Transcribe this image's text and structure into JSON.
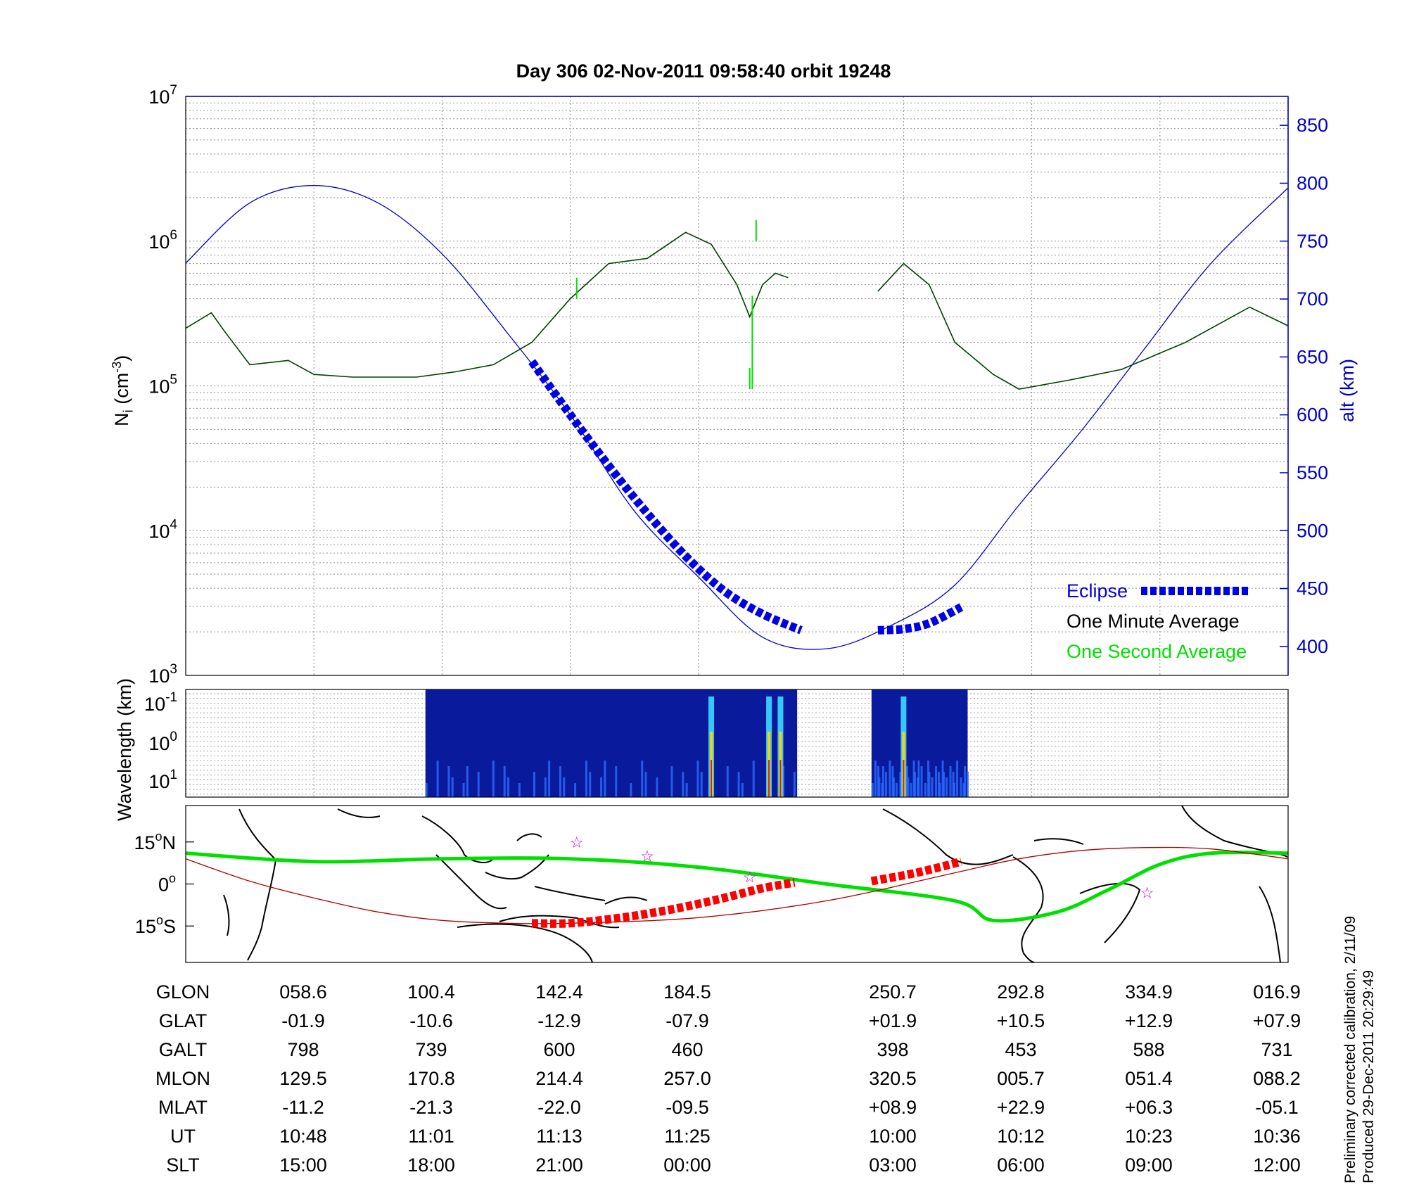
{
  "title": "Day 306  02-Nov-2011 09:58:40   orbit 19248",
  "colors": {
    "altitude": "#0000c8",
    "eclipse": "#0000e6",
    "one_minute": "#004000",
    "one_second": "#00e000",
    "ground_track": "#00e000",
    "eclipse_track": "#ff0000",
    "magnetic_equator": "#b00000",
    "stars": "#cc00cc"
  },
  "chart_data": [
    {
      "type": "line",
      "panel": "density",
      "ylabel_left": "N",
      "ylabel_left_sub": "i",
      "ylabel_left_unit": "(cm",
      "ylabel_left_exp": "-3",
      "ylabel_left_close": ")",
      "ylabel_right": "alt (km)",
      "yscale": "log",
      "ylim": [
        1000,
        10000000
      ],
      "y_ticks": [
        {
          "base": "10",
          "exp": "3"
        },
        {
          "base": "10",
          "exp": "4"
        },
        {
          "base": "10",
          "exp": "5"
        },
        {
          "base": "10",
          "exp": "6"
        },
        {
          "base": "10",
          "exp": "7"
        }
      ],
      "y2lim": [
        375,
        875
      ],
      "y2_ticks": [
        "400",
        "450",
        "500",
        "550",
        "600",
        "650",
        "700",
        "750",
        "800",
        "850"
      ],
      "xlim": [
        0,
        8.6
      ],
      "grid": true,
      "legend": {
        "placement": "bottom-right",
        "entries": [
          "Eclipse",
          "One Minute Average",
          "One Second Average"
        ]
      },
      "series": [
        {
          "name": "Altitude",
          "x": [
            0.0,
            0.5,
            1.0,
            1.5,
            2.0,
            2.5,
            3.0,
            3.5,
            4.0,
            4.5,
            5.0,
            5.5,
            6.0,
            6.5,
            7.0,
            7.5,
            8.0,
            8.6
          ],
          "values": [
            731,
            783,
            798,
            783,
            739,
            672,
            600,
            517,
            460,
            408,
            398,
            418,
            453,
            522,
            588,
            660,
            731,
            796
          ]
        },
        {
          "name": "Eclipse",
          "x": [
            2.7,
            3.0,
            3.3,
            3.6,
            3.9,
            4.2,
            4.5,
            4.8,
            5.4,
            5.6,
            5.8,
            6.05
          ],
          "values": [
            646,
            600,
            556,
            515,
            478,
            448,
            428,
            414,
            414,
            415,
            420,
            434
          ]
        },
        {
          "name": "One Minute Average",
          "x": [
            0.0,
            0.2,
            0.3,
            0.5,
            0.8,
            1.0,
            1.3,
            1.8,
            2.1,
            2.4,
            2.7,
            3.0,
            3.3,
            3.6,
            3.9,
            4.1,
            4.3,
            4.4,
            4.5,
            4.6,
            4.7
          ],
          "values": [
            250000,
            320000,
            240000,
            140000,
            150000,
            120000,
            115000,
            115000,
            125000,
            140000,
            200000,
            400000,
            700000,
            760000,
            1150000,
            950000,
            500000,
            300000,
            500000,
            600000,
            560000
          ],
          "x2": [
            5.4,
            5.6,
            5.8,
            6.0,
            6.3,
            6.5,
            6.9,
            7.3,
            7.8,
            8.3,
            8.6
          ],
          "values2": [
            450000,
            700000,
            500000,
            200000,
            120000,
            95000,
            110000,
            130000,
            200000,
            350000,
            260000
          ]
        },
        {
          "name": "One Second Average",
          "x": [
            3.05,
            4.4,
            4.42,
            4.45
          ],
          "values": [
            400000,
            95000,
            300000,
            1000000
          ]
        }
      ]
    },
    {
      "type": "heatmap",
      "panel": "spectrogram",
      "ylabel": "Wavelength (km)",
      "y_ticks": [
        {
          "base": "10",
          "exp": "-1"
        },
        {
          "base": "10",
          "exp": "0"
        },
        {
          "base": "10",
          "exp": "1"
        }
      ],
      "blocks": [
        {
          "x": [
            1.87,
            4.77
          ],
          "hot_x": [
            4.1,
            4.55,
            4.64
          ]
        },
        {
          "x": [
            5.35,
            6.1
          ],
          "hot_x": [
            5.6
          ]
        }
      ]
    },
    {
      "type": "line",
      "panel": "map",
      "ylim": [
        -28,
        28
      ],
      "y_ticks": [
        {
          "label": "15",
          "deg": "o",
          "hemi": "N",
          "value": 15
        },
        {
          "label": "0",
          "deg": "o",
          "hemi": "",
          "value": 0
        },
        {
          "label": "15",
          "deg": "o",
          "hemi": "S",
          "value": -15
        }
      ],
      "series": [
        {
          "name": "Ground track",
          "x": [
            0,
            1,
            2,
            3,
            4,
            5,
            6,
            6.3,
            6.8,
            7.2,
            7.6,
            8.0,
            8.6
          ],
          "values": [
            11,
            8,
            9,
            9,
            6,
            0,
            -6,
            -13,
            -10,
            -2,
            7,
            11,
            11
          ]
        },
        {
          "name": "Eclipse track",
          "x": [
            2.7,
            3.0,
            3.4,
            3.8,
            4.2,
            4.5,
            4.75,
            5.35,
            5.7,
            6.05
          ],
          "values": [
            -14,
            -14,
            -12,
            -9,
            -5,
            -1.5,
            0.5,
            1,
            4,
            8
          ]
        },
        {
          "name": "Magnetic equator",
          "x": [
            0,
            0.5,
            1,
            1.5,
            2,
            2.5,
            3,
            4,
            5,
            6,
            6.5,
            7,
            7.5,
            8,
            8.6
          ],
          "values": [
            9,
            1,
            -5,
            -10,
            -13,
            -14,
            -14,
            -12,
            -6,
            4,
            9,
            12,
            13,
            12.5,
            9
          ]
        },
        {
          "name": "Stars",
          "x": [
            3.05,
            3.6,
            4.4,
            7.5
          ],
          "values": [
            15,
            10,
            2.5,
            -3
          ]
        }
      ]
    }
  ],
  "table": {
    "rows": [
      {
        "label": "GLON",
        "values": [
          "058.6",
          "100.4",
          "142.4",
          "184.5",
          "250.7",
          "292.8",
          "334.9",
          "016.9"
        ]
      },
      {
        "label": "GLAT",
        "values": [
          "-01.9",
          "-10.6",
          "-12.9",
          "-07.9",
          "+01.9",
          "+10.5",
          "+12.9",
          "+07.9"
        ]
      },
      {
        "label": "GALT",
        "values": [
          "798",
          "739",
          "600",
          "460",
          "398",
          "453",
          "588",
          "731"
        ]
      },
      {
        "label": "MLON",
        "values": [
          "129.5",
          "170.8",
          "214.4",
          "257.0",
          "320.5",
          "005.7",
          "051.4",
          "088.2"
        ]
      },
      {
        "label": "MLAT",
        "values": [
          "-11.2",
          "-21.3",
          "-22.0",
          "-09.5",
          "+08.9",
          "+22.9",
          "+06.3",
          "-05.1"
        ]
      },
      {
        "label": "UT",
        "values": [
          "10:48",
          "11:01",
          "11:13",
          "11:25",
          "10:00",
          "10:12",
          "10:23",
          "10:36"
        ]
      },
      {
        "label": "SLT",
        "values": [
          "15:00",
          "18:00",
          "21:00",
          "00:00",
          "03:00",
          "06:00",
          "09:00",
          "12:00"
        ]
      }
    ]
  },
  "notes": {
    "calibration": "Preliminary corrected calibration, 2/11/09",
    "produced": "Produced 29-Dec-2011 20:29:49"
  }
}
